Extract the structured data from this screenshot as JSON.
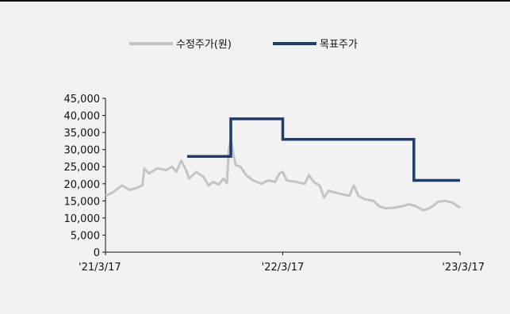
{
  "chart_data": {
    "type": "line",
    "legend": [
      {
        "name": "수정주가(원)",
        "color": "#c4c4c4"
      },
      {
        "name": "목표주가",
        "color": "#1f3c6a"
      }
    ],
    "legend_position": "top-center",
    "x_ticks": [
      "'21/3/17",
      "'22/3/17",
      "'23/3/17"
    ],
    "xlim": [
      "2021-03-17",
      "2023-03-17"
    ],
    "ylim": [
      0,
      45000
    ],
    "y_ticks": [
      0,
      5000,
      10000,
      15000,
      20000,
      25000,
      30000,
      35000,
      40000,
      45000
    ],
    "y_tick_labels": [
      "0",
      "5,000",
      "10,000",
      "15,000",
      "20,000",
      "25,000",
      "30,000",
      "35,000",
      "40,000",
      "45,000"
    ],
    "grid": false,
    "series": [
      {
        "name": "수정주가(원)",
        "color": "#c4c4c4",
        "points": [
          [
            "2021-03-17",
            16500
          ],
          [
            "2021-04-01",
            17500
          ],
          [
            "2021-04-20",
            19500
          ],
          [
            "2021-05-05",
            18200
          ],
          [
            "2021-05-20",
            18800
          ],
          [
            "2021-06-01",
            19500
          ],
          [
            "2021-06-05",
            24500
          ],
          [
            "2021-06-15",
            23000
          ],
          [
            "2021-07-01",
            24500
          ],
          [
            "2021-07-20",
            24000
          ],
          [
            "2021-08-01",
            25000
          ],
          [
            "2021-08-10",
            23500
          ],
          [
            "2021-08-20",
            26800
          ],
          [
            "2021-08-30",
            24000
          ],
          [
            "2021-09-05",
            21500
          ],
          [
            "2021-09-20",
            23500
          ],
          [
            "2021-10-05",
            22000
          ],
          [
            "2021-10-15",
            19500
          ],
          [
            "2021-10-25",
            20500
          ],
          [
            "2021-11-05",
            19800
          ],
          [
            "2021-11-15",
            21500
          ],
          [
            "2021-11-22",
            20200
          ],
          [
            "2021-11-26",
            30000
          ],
          [
            "2021-11-30",
            32800
          ],
          [
            "2021-12-05",
            29000
          ],
          [
            "2021-12-10",
            25500
          ],
          [
            "2021-12-20",
            25000
          ],
          [
            "2022-01-01",
            22500
          ],
          [
            "2022-01-15",
            21000
          ],
          [
            "2022-02-01",
            20000
          ],
          [
            "2022-02-15",
            21000
          ],
          [
            "2022-03-01",
            20500
          ],
          [
            "2022-03-10",
            23000
          ],
          [
            "2022-03-17",
            23500
          ],
          [
            "2022-03-25",
            21000
          ],
          [
            "2022-04-15",
            20500
          ],
          [
            "2022-05-01",
            20000
          ],
          [
            "2022-05-10",
            22500
          ],
          [
            "2022-05-20",
            20500
          ],
          [
            "2022-06-01",
            19500
          ],
          [
            "2022-06-10",
            16000
          ],
          [
            "2022-06-20",
            18000
          ],
          [
            "2022-07-01",
            17500
          ],
          [
            "2022-07-15",
            17000
          ],
          [
            "2022-08-01",
            16500
          ],
          [
            "2022-08-10",
            19500
          ],
          [
            "2022-08-20",
            16500
          ],
          [
            "2022-09-01",
            15500
          ],
          [
            "2022-09-20",
            15000
          ],
          [
            "2022-10-01",
            13500
          ],
          [
            "2022-10-15",
            12800
          ],
          [
            "2022-11-01",
            13000
          ],
          [
            "2022-11-20",
            13500
          ],
          [
            "2022-12-01",
            14000
          ],
          [
            "2022-12-15",
            13500
          ],
          [
            "2023-01-01",
            12200
          ],
          [
            "2023-01-15",
            13000
          ],
          [
            "2023-02-01",
            14800
          ],
          [
            "2023-02-15",
            15000
          ],
          [
            "2023-03-01",
            14500
          ],
          [
            "2023-03-17",
            13000
          ]
        ]
      },
      {
        "name": "목표주가",
        "color": "#1f3c6a",
        "points": [
          [
            "2021-09-01",
            28000
          ],
          [
            "2021-11-30",
            28000
          ],
          [
            "2021-11-30",
            39000
          ],
          [
            "2022-03-17",
            39000
          ],
          [
            "2022-03-17",
            33000
          ],
          [
            "2022-12-12",
            33000
          ],
          [
            "2022-12-12",
            21000
          ],
          [
            "2023-03-17",
            21000
          ]
        ]
      }
    ]
  }
}
